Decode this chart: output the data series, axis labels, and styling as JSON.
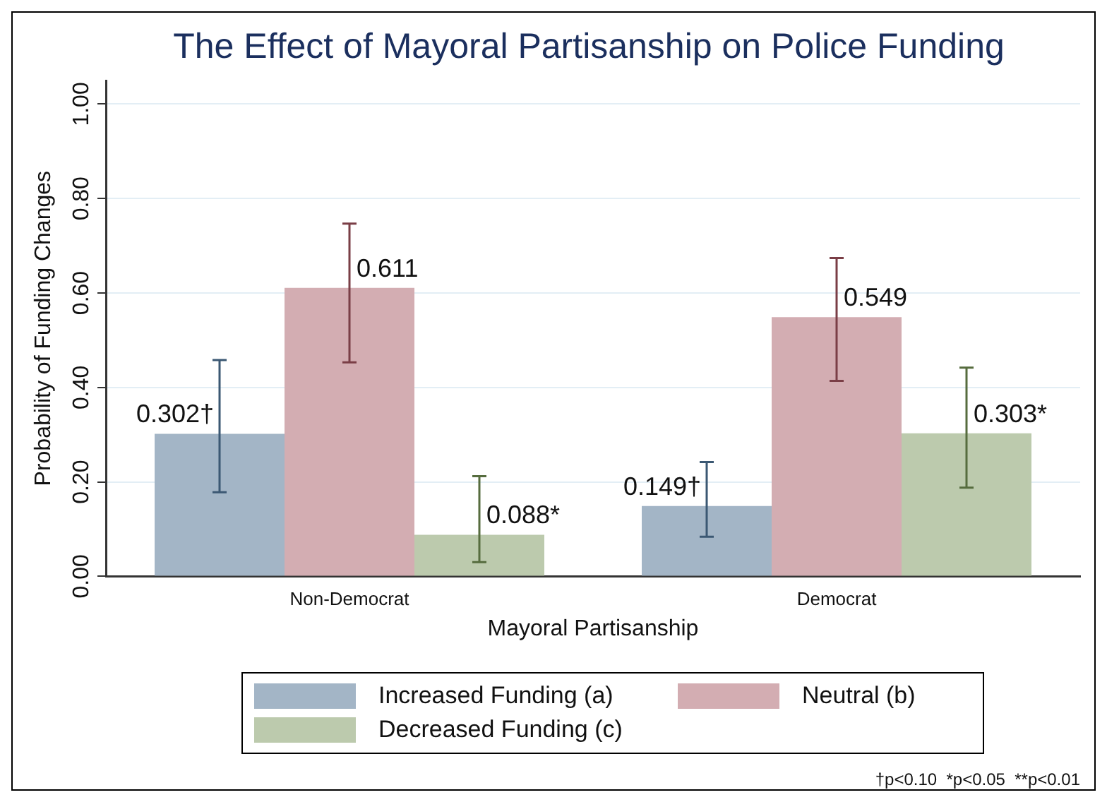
{
  "chart_data": {
    "type": "bar",
    "title": "The Effect of Mayoral Partisanship on Police Funding",
    "xlabel": "Mayoral Partisanship",
    "ylabel": "Probability of Funding Changes",
    "categories": [
      "Non-Democrat",
      "Democrat"
    ],
    "series": [
      {
        "name": "Increased Funding (a)",
        "color": "#a3b5c6",
        "values": [
          0.302,
          0.149
        ],
        "errors": [
          [
            0.178,
            0.458
          ],
          [
            0.084,
            0.242
          ]
        ],
        "value_labels": [
          "0.302†",
          "0.149†"
        ]
      },
      {
        "name": "Neutral (b)",
        "color": "#d3adb2",
        "values": [
          0.611,
          0.549
        ],
        "errors": [
          [
            0.453,
            0.747
          ],
          [
            0.414,
            0.674
          ]
        ],
        "value_labels": [
          "0.611",
          "0.549"
        ]
      },
      {
        "name": "Decreased Funding (c)",
        "color": "#bccaad",
        "values": [
          0.088,
          0.303
        ],
        "errors": [
          [
            0.03,
            0.212
          ],
          [
            0.188,
            0.442
          ]
        ],
        "value_labels": [
          "0.088*",
          "0.303*"
        ]
      }
    ],
    "ylim": [
      0,
      1.05
    ],
    "yticks": [
      {
        "value": 0,
        "label": "0.00"
      },
      {
        "value": 0.2,
        "label": "0.20"
      },
      {
        "value": 0.4,
        "label": "0.40"
      },
      {
        "value": 0.6,
        "label": "0.60"
      },
      {
        "value": 0.8,
        "label": "0.80"
      },
      {
        "value": 1,
        "label": "1.00"
      }
    ],
    "grid": "y",
    "legend": "bottom",
    "annotations": [
      "†p<0.10  *p<0.05  **p<0.01"
    ]
  }
}
